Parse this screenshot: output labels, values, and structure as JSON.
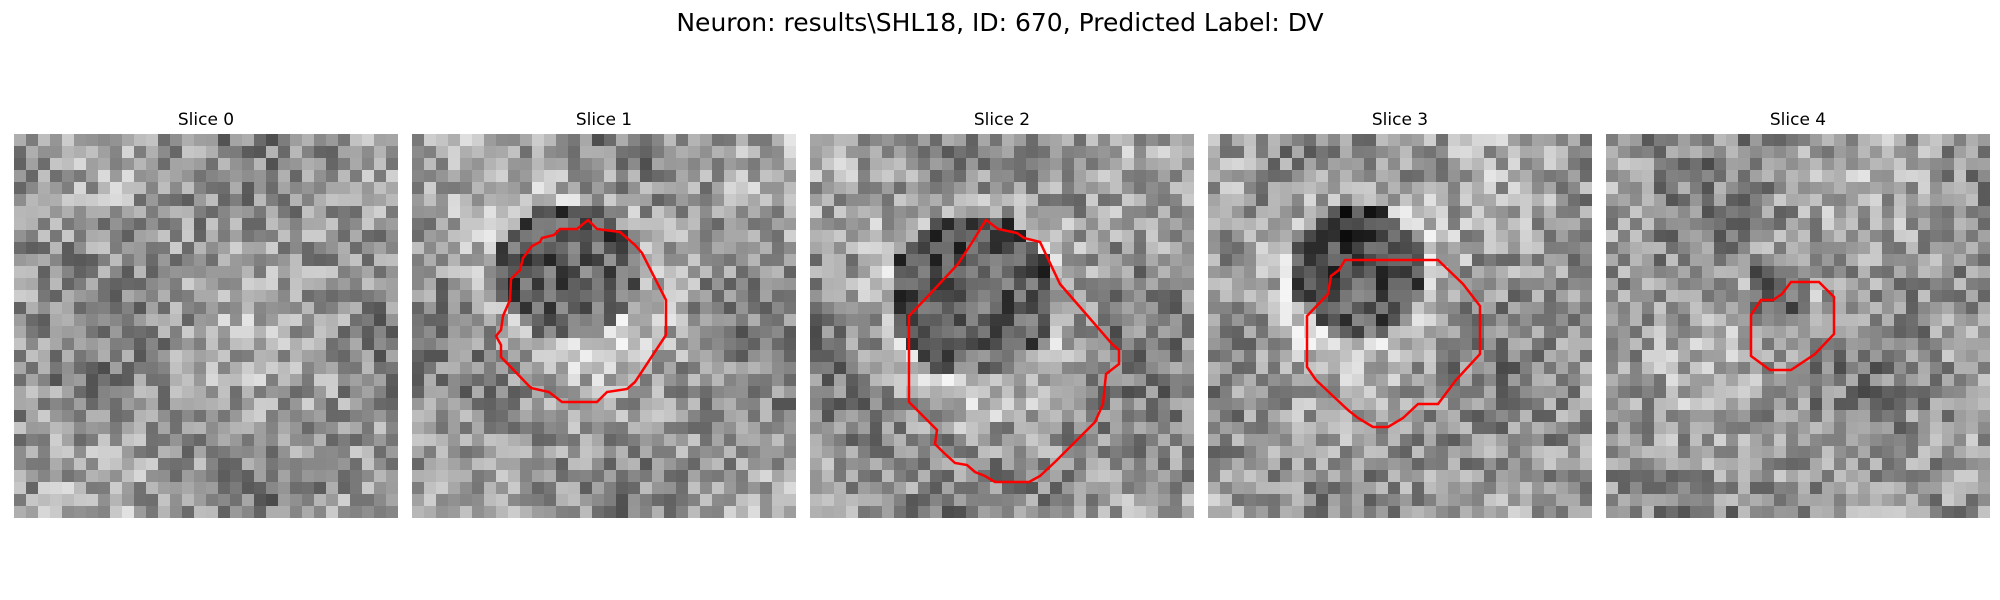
{
  "figure": {
    "title": "Neuron: results\\SHL18, ID: 670, Predicted Label: DV"
  },
  "panels": [
    {
      "title": "Slice 0",
      "has_contour": false
    },
    {
      "title": "Slice 1",
      "has_contour": true
    },
    {
      "title": "Slice 2",
      "has_contour": true
    },
    {
      "title": "Slice 3",
      "has_contour": true
    },
    {
      "title": "Slice 4",
      "has_contour": true
    }
  ],
  "colors": {
    "contour": "#ff0000",
    "background": "#ffffff"
  }
}
